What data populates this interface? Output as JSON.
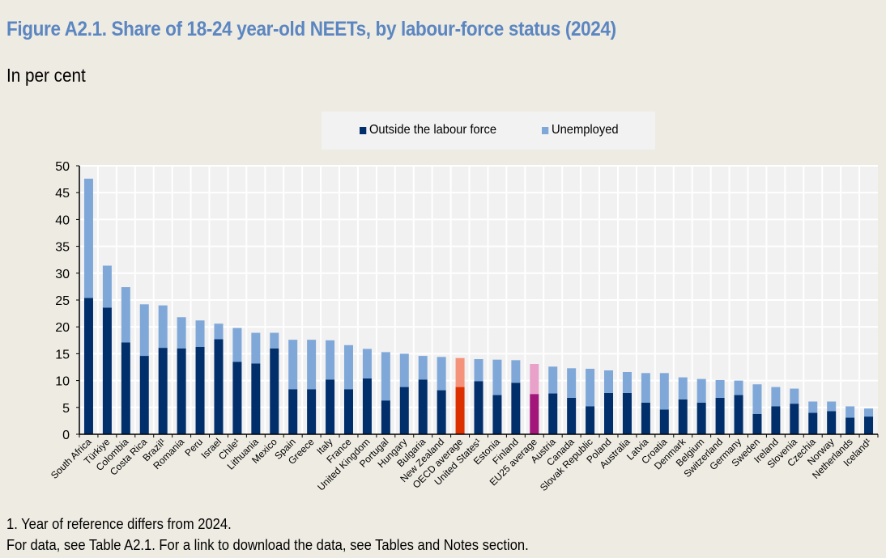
{
  "header": {
    "title": "Figure A2.1. Share of 18-24 year-old NEETs, by labour-force status (2024)",
    "subtitle": "In per cent"
  },
  "footer": {
    "note1": "1. Year of reference differs from 2024.",
    "note2": "For data, see Table A2.1. For a link to download the data, see Tables and Notes section."
  },
  "colors": {
    "outside": "#002f6c",
    "unemployed": "#7fa8d9",
    "oecd_outside": "#dc3000",
    "oecd_unemployed": "#f4937a",
    "eu_outside": "#a3177a",
    "eu_unemployed": "#e9a0c9",
    "plot_bg": "#f1f1f1",
    "title": "#5b86c1"
  },
  "chart_data": {
    "type": "bar",
    "stacked": true,
    "title": "Figure A2.1. Share of 18-24 year-old NEETs, by labour-force status (2024)",
    "subtitle": "In per cent",
    "xlabel": "",
    "ylabel": "",
    "ylim": [
      0,
      50
    ],
    "yticks": [
      0,
      5,
      10,
      15,
      20,
      25,
      30,
      35,
      40,
      45,
      50
    ],
    "grid": true,
    "legend_position": "top-center",
    "categories": [
      "South Africa",
      "Türkiye",
      "Colombia",
      "Costa Rica",
      "Brazil¹",
      "Romania",
      "Peru",
      "Israel",
      "Chile¹",
      "Lithuania",
      "Mexico",
      "Spain",
      "Greece",
      "Italy",
      "France",
      "United Kingdom",
      "Portugal",
      "Hungary",
      "Bulgaria",
      "New Zealand",
      "OECD average",
      "United States¹",
      "Estonia",
      "Finland",
      "EU25 average",
      "Austria",
      "Canada",
      "Slovak Republic",
      "Poland",
      "Australia",
      "Latvia",
      "Croatia",
      "Denmark",
      "Belgium",
      "Switzerland",
      "Germany",
      "Sweden",
      "Ireland",
      "Slovenia",
      "Czechia",
      "Norway",
      "Netherlands",
      "Iceland¹"
    ],
    "highlight": {
      "OECD average": "oecd",
      "EU25 average": "eu"
    },
    "series": [
      {
        "name": "Outside the labour force",
        "values": [
          25.4,
          23.6,
          17.1,
          14.6,
          16.1,
          16.0,
          16.3,
          17.7,
          13.5,
          13.2,
          16.0,
          8.4,
          8.4,
          10.2,
          8.4,
          10.4,
          6.3,
          8.8,
          10.2,
          8.2,
          8.8,
          9.9,
          7.3,
          9.6,
          7.5,
          7.6,
          6.8,
          5.2,
          7.7,
          7.7,
          5.9,
          4.6,
          6.5,
          5.9,
          6.8,
          7.3,
          3.8,
          5.2,
          5.7,
          4.0,
          4.3,
          3.1,
          3.3
        ]
      },
      {
        "name": "Unemployed",
        "values": [
          22.2,
          7.8,
          10.3,
          9.6,
          7.9,
          5.8,
          4.9,
          2.9,
          6.3,
          5.7,
          2.9,
          9.2,
          9.2,
          7.3,
          8.2,
          5.5,
          9.0,
          6.2,
          4.4,
          6.2,
          5.4,
          4.1,
          6.6,
          4.2,
          5.6,
          5.0,
          5.5,
          7.0,
          4.2,
          3.9,
          5.5,
          6.8,
          4.1,
          4.4,
          3.3,
          2.7,
          5.5,
          3.6,
          2.8,
          2.1,
          1.8,
          2.1,
          1.5
        ]
      }
    ]
  }
}
